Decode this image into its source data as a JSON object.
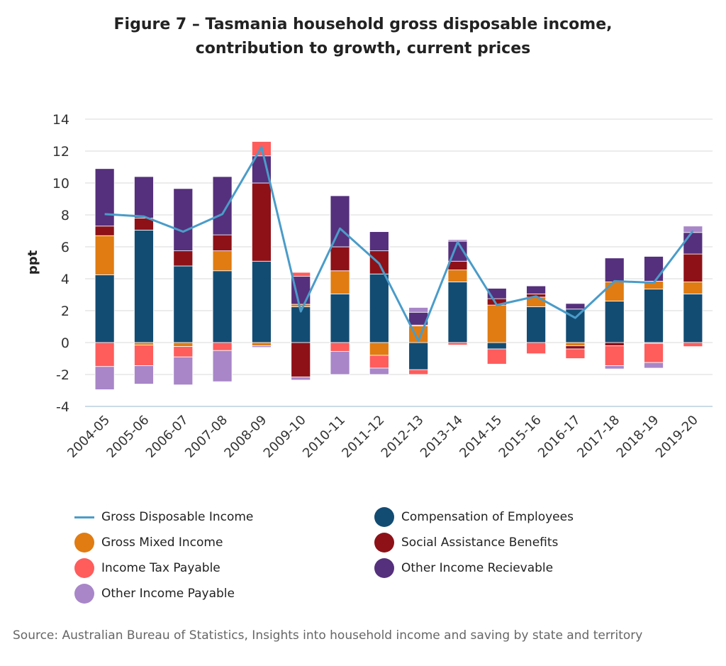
{
  "chart_data": {
    "type": "bar",
    "title_lines": [
      "Figure 7 – Tasmania household gross disposable income,",
      "contribution to growth, current prices"
    ],
    "ylabel": "ppt",
    "ylim": [
      -4,
      14
    ],
    "yticks": [
      -4,
      -2,
      0,
      2,
      4,
      6,
      8,
      10,
      12,
      14
    ],
    "grid": true,
    "stacked": true,
    "categories": [
      "2004-05",
      "2005-06",
      "2006-07",
      "2007-08",
      "2008-09",
      "2009-10",
      "2010-11",
      "2011-12",
      "2012-13",
      "2013-14",
      "2014-15",
      "2015-16",
      "2016-17",
      "2017-18",
      "2018-19",
      "2019-20"
    ],
    "series": [
      {
        "name": "Compensation of Employees",
        "kind": "bar",
        "color": "#134C73",
        "values": [
          4.25,
          7.05,
          4.8,
          4.5,
          5.1,
          2.25,
          3.05,
          4.3,
          -1.7,
          3.8,
          -0.4,
          2.25,
          2.1,
          2.6,
          3.35,
          3.05
        ]
      },
      {
        "name": "Gross Mixed Income",
        "kind": "bar",
        "color": "#E07C12",
        "values": [
          2.45,
          -0.15,
          -0.25,
          1.25,
          -0.2,
          0.15,
          1.45,
          -0.8,
          1.05,
          0.75,
          2.35,
          0.6,
          -0.2,
          1.2,
          0.5,
          0.75
        ]
      },
      {
        "name": "Social Assistance Benefits",
        "kind": "bar",
        "color": "#8E1118",
        "values": [
          0.6,
          0.75,
          0.95,
          1.0,
          4.9,
          -2.15,
          1.5,
          1.45,
          0.05,
          0.55,
          0.4,
          0.2,
          -0.2,
          -0.2,
          -0.05,
          1.75
        ]
      },
      {
        "name": "Other Income Recievable",
        "kind": "bar",
        "color": "#55307D",
        "values": [
          3.6,
          2.6,
          3.9,
          3.65,
          1.7,
          1.75,
          3.2,
          1.2,
          0.8,
          1.25,
          0.65,
          0.5,
          0.35,
          1.5,
          1.55,
          1.35
        ]
      },
      {
        "name": "Income Tax Payable",
        "kind": "bar",
        "color": "#FF5C5C",
        "values": [
          -1.5,
          -1.3,
          -0.65,
          -0.5,
          0.9,
          0.25,
          -0.55,
          -0.8,
          -0.3,
          -0.15,
          -0.95,
          -0.7,
          -0.6,
          -1.25,
          -1.2,
          -0.25
        ]
      },
      {
        "name": "Other Income Payable",
        "kind": "bar",
        "color": "#A886C8",
        "values": [
          -1.45,
          -1.15,
          -1.75,
          -1.95,
          -0.1,
          -0.2,
          -1.45,
          -0.4,
          0.3,
          0.1,
          0.0,
          0.0,
          0.0,
          -0.2,
          -0.35,
          0.4
        ]
      },
      {
        "name": "Gross Disposable Income",
        "kind": "line",
        "color": "#4A9CC9",
        "values": [
          8.05,
          7.9,
          6.95,
          8.05,
          12.25,
          1.95,
          7.15,
          4.95,
          0.1,
          6.3,
          2.35,
          2.9,
          1.55,
          3.85,
          3.75,
          7.0
        ]
      }
    ],
    "legend": {
      "placement": "bottom",
      "order": [
        "Gross Disposable Income",
        "Compensation of Employees",
        "Gross Mixed Income",
        "Social Assistance Benefits",
        "Income Tax Payable",
        "Other Income Recievable",
        "Other Income Payable"
      ]
    }
  },
  "source": "Source: Australian Bureau of Statistics, Insights into household income and saving by state and territory"
}
